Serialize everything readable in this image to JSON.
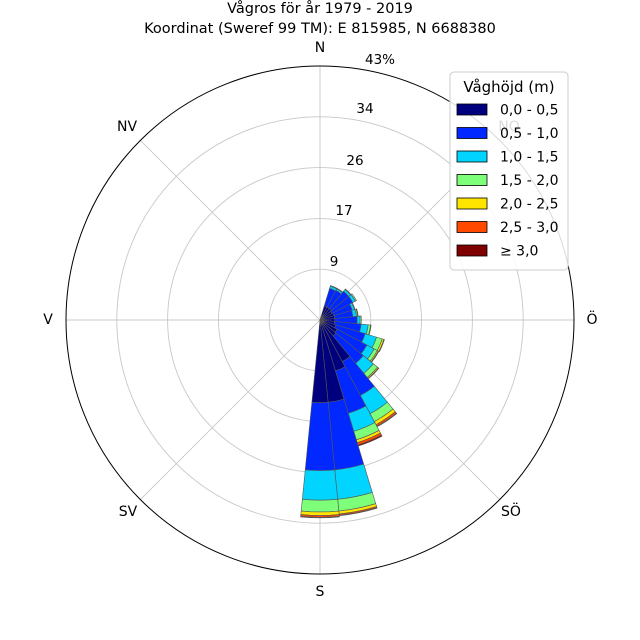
{
  "chart_data": {
    "type": "windrose",
    "title_line1": "Vågros för år 1979 - 2019",
    "title_line2": "Koordinat (Sweref 99 TM): E 815985, N 6688380",
    "directions": [
      "N",
      "NO",
      "Ö",
      "SÖ",
      "S",
      "SV",
      "V",
      "NV"
    ],
    "rings": [
      "9",
      "17",
      "26",
      "34",
      "43%"
    ],
    "r_max": 43,
    "legend": {
      "title": "Våghöjd (m)",
      "placement": "top-right",
      "bins": [
        "0,0 - 0,5",
        "0,5 - 1,0",
        "1,0 - 1,5",
        "1,5 - 2,0",
        "2,0 - 2,5",
        "2,5 - 3,0",
        "≥ 3,0"
      ],
      "colors": [
        "#00007f",
        "#0028ff",
        "#00d4ff",
        "#7dff7a",
        "#ffe500",
        "#ff4800",
        "#7f0000"
      ]
    },
    "sector_width_deg": 11.25,
    "sectors": [
      {
        "angle": 22.5,
        "values": [
          2.5,
          3.1,
          0.4,
          0.1,
          0,
          0,
          0
        ]
      },
      {
        "angle": 33.75,
        "values": [
          2.5,
          3.2,
          0.3,
          0.1,
          0,
          0,
          0
        ]
      },
      {
        "angle": 45,
        "values": [
          2.5,
          3.8,
          0.4,
          0.1,
          0,
          0,
          0
        ]
      },
      {
        "angle": 56.25,
        "values": [
          2.3,
          4.0,
          0.5,
          0.2,
          0,
          0,
          0
        ]
      },
      {
        "angle": 67.5,
        "values": [
          2.5,
          3.2,
          0.4,
          0.1,
          0,
          0,
          0
        ]
      },
      {
        "angle": 78.75,
        "values": [
          2.5,
          3.1,
          0.6,
          0.2,
          0.1,
          0,
          0
        ]
      },
      {
        "angle": 90,
        "values": [
          2.5,
          3.8,
          0.5,
          0.2,
          0,
          0,
          0
        ]
      },
      {
        "angle": 101.25,
        "values": [
          2.5,
          4.5,
          1.2,
          0.4,
          0.1,
          0,
          0
        ]
      },
      {
        "angle": 112.5,
        "values": [
          2.8,
          5.2,
          2.0,
          1.0,
          0.3,
          0.1,
          0
        ]
      },
      {
        "angle": 123.75,
        "values": [
          3.3,
          5.7,
          1.4,
          0.6,
          0.2,
          0.1,
          0
        ]
      },
      {
        "angle": 135,
        "values": [
          3.5,
          6.0,
          2.2,
          0.9,
          0.2,
          0.1,
          0
        ]
      },
      {
        "angle": 146.25,
        "values": [
          8.0,
          6.5,
          3.5,
          1.5,
          0.6,
          0.3,
          0.1
        ]
      },
      {
        "angle": 157.5,
        "values": [
          9.0,
          7.5,
          3.2,
          1.5,
          0.5,
          0.4,
          0.2
        ]
      },
      {
        "angle": 168.75,
        "values": [
          14.0,
          11.5,
          5.0,
          2.0,
          0.5,
          0.2,
          0.1
        ]
      },
      {
        "angle": 180,
        "values": [
          14.0,
          11.5,
          5.0,
          2.0,
          0.6,
          0.3,
          0.1
        ]
      }
    ]
  }
}
